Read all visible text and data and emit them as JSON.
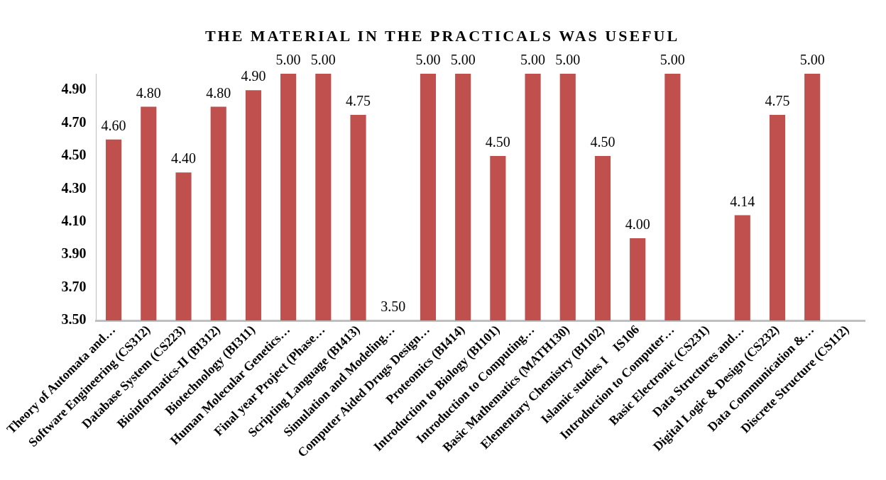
{
  "chart_data": {
    "type": "bar",
    "title": "THE MATERIAL IN THE PRACTICALS WAS USEFUL",
    "categories": [
      "Theory of Automata and…",
      "Software Engineering (CS312)",
      "Database System (CS223)",
      "Bioinformatics-II (BI312)",
      "Biotechnology (BI311)",
      "Human Molecular Genetics…",
      "Final year Project (Phase…",
      "Scripting Language (BI413)",
      "Simulation and Modeling…",
      "Computer Aided Drugs Design…",
      "Proteomics (BI414)",
      "Introduction to Biology (BI101)",
      "Introduction to Computing…",
      "Basic Mathematics (MATH130)",
      "Elementary Chemistry (BI102)",
      "Islamic studies I    IS106",
      "Introduction to Computer…",
      "Basic Electronic (CS231)",
      "Data Structures and…",
      "Digital Logic & Design (CS232)",
      "Data Communication &…",
      "Discrete Structure (CS112)"
    ],
    "values": [
      4.6,
      4.8,
      4.4,
      4.8,
      4.9,
      5.0,
      5.0,
      4.75,
      3.5,
      5.0,
      5.0,
      4.5,
      5.0,
      5.0,
      4.5,
      4.0,
      5.0,
      null,
      4.14,
      4.75,
      5.0,
      null
    ],
    "value_labels": [
      "4.60",
      "4.80",
      "4.40",
      "4.80",
      "4.90",
      "5.00",
      "5.00",
      "4.75",
      "3.50",
      "5.00",
      "5.00",
      "4.50",
      "5.00",
      "5.00",
      "4.50",
      "4.00",
      "5.00",
      null,
      "4.14",
      "4.75",
      "5.00",
      null
    ],
    "color": "#c0504d",
    "ylim": [
      3.5,
      5.0
    ],
    "yticks": [
      {
        "value": 3.5,
        "label": "3.50"
      },
      {
        "value": 3.7,
        "label": "3.70"
      },
      {
        "value": 3.9,
        "label": "3.90"
      },
      {
        "value": 4.1,
        "label": "4.10"
      },
      {
        "value": 4.3,
        "label": "4.30"
      },
      {
        "value": 4.5,
        "label": "4.50"
      },
      {
        "value": 4.7,
        "label": "4.70"
      },
      {
        "value": 4.9,
        "label": "4.90"
      }
    ],
    "grid": false,
    "legend": false
  }
}
